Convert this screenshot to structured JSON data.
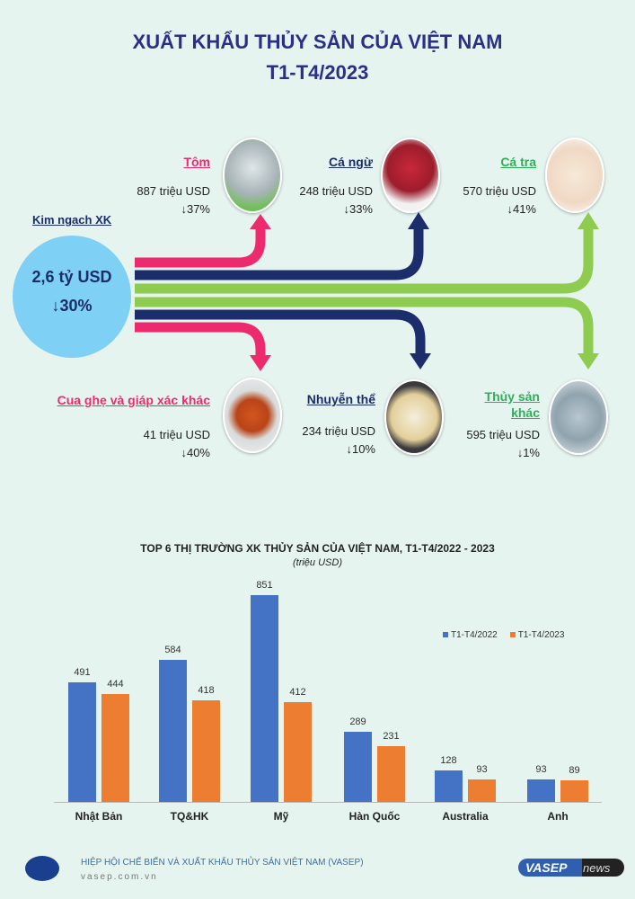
{
  "title": {
    "line1": "XUẤT KHẨU THỦY SẢN CỦA VIỆT NAM",
    "line2": "T1-T4/2023"
  },
  "total": {
    "label": "Kim ngach XK",
    "value": "2,6 tỷ USD",
    "change": "↓30%"
  },
  "products": [
    {
      "name": "Tôm",
      "value": "887 triệu USD",
      "change": "↓37%",
      "color": "#ee2a6e"
    },
    {
      "name": "Cá ngừ",
      "value": "248 triệu USD",
      "change": "↓33%",
      "color": "#1b2d6b"
    },
    {
      "name": "Cá tra",
      "value": "570 triệu USD",
      "change": "↓41%",
      "color": "#2fae5a"
    },
    {
      "name": "Cua ghẹ và giáp xác khác",
      "value": "41 triệu USD",
      "change": "↓40%",
      "color": "#ee2a6e"
    },
    {
      "name": "Nhuyễn thể",
      "value": "234 triệu USD",
      "change": "↓10%",
      "color": "#1b2d6b"
    },
    {
      "name": "Thủy sản khác",
      "value": "595 triệu USD",
      "change": "↓1%",
      "color": "#2fae5a"
    }
  ],
  "colors": {
    "pink": "#ee2a6e",
    "navy": "#1b2d6b",
    "green": "#8dcc4e",
    "circle": "#7fd0f5"
  },
  "chart_data": {
    "type": "bar",
    "title": "TOP 6 THỊ TRƯỜNG XK THỦY SẢN CỦA VIỆT NAM, T1-T4/2022 - 2023",
    "subtitle": "(triệu USD)",
    "categories": [
      "Nhật Bản",
      "TQ&HK",
      "Mỹ",
      "Hàn Quốc",
      "Australia",
      "Anh"
    ],
    "series": [
      {
        "name": "T1-T4/2022",
        "values": [
          491,
          584,
          851,
          289,
          128,
          93
        ],
        "color": "#4472c4"
      },
      {
        "name": "T1-T4/2023",
        "values": [
          444,
          418,
          412,
          231,
          93,
          89
        ],
        "color": "#ed7d31"
      }
    ],
    "ylim": [
      0,
      851
    ],
    "grid": false,
    "legend": "top-right"
  },
  "footer": {
    "org": "HIỆP HỘI CHẾ BIẾN VÀ XUẤT KHẨU THỦY SẢN VIỆT NAM (VASEP)",
    "site": "vasep.com.vn",
    "logo_text": "VASEP",
    "brand1": "VASEP",
    "brand2": "news"
  }
}
